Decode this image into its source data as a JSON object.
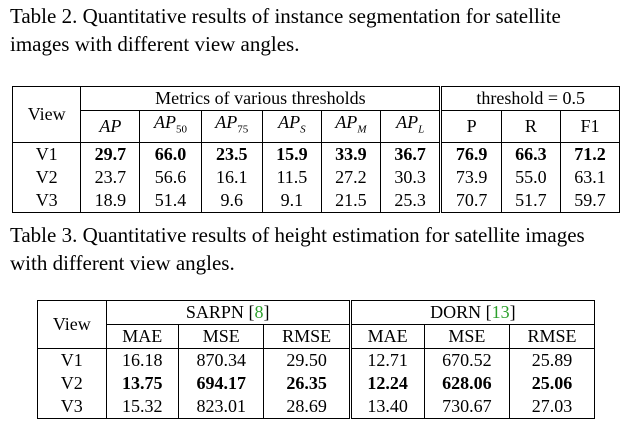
{
  "caption2": "Table 2. Quantitative results of instance segmentation for satellite images with different view angles.",
  "caption3": "Table 3. Quantitative results of height estimation for satellite images with different view angles.",
  "table2": {
    "view_header": "View",
    "group1": "Metrics of various thresholds",
    "group2": "threshold = 0.5",
    "metrics": [
      {
        "base": "AP",
        "sub": ""
      },
      {
        "base": "AP",
        "sub": "50"
      },
      {
        "base": "AP",
        "sub": "75"
      },
      {
        "base": "AP",
        "sub": "S"
      },
      {
        "base": "AP",
        "sub": "M"
      },
      {
        "base": "AP",
        "sub": "L"
      }
    ],
    "thr_cols": [
      "P",
      "R",
      "F1"
    ],
    "rows": [
      {
        "view": "V1",
        "values": [
          "29.7",
          "66.0",
          "23.5",
          "15.9",
          "33.9",
          "36.7",
          "76.9",
          "66.3",
          "71.2"
        ],
        "bold": true
      },
      {
        "view": "V2",
        "values": [
          "23.7",
          "56.6",
          "16.1",
          "11.5",
          "27.2",
          "30.3",
          "73.9",
          "55.0",
          "63.1"
        ],
        "bold": false
      },
      {
        "view": "V3",
        "values": [
          "18.9",
          "51.4",
          "9.6",
          "9.1",
          "21.5",
          "25.3",
          "70.7",
          "51.7",
          "59.7"
        ],
        "bold": false
      }
    ]
  },
  "table3": {
    "view_header": "View",
    "group1": {
      "name": "SARPN",
      "ref": "8"
    },
    "group2": {
      "name": "DORN",
      "ref": "13"
    },
    "cols": [
      "MAE",
      "MSE",
      "RMSE",
      "MAE",
      "MSE",
      "RMSE"
    ],
    "rows": [
      {
        "view": "V1",
        "values": [
          "16.18",
          "870.34",
          "29.50",
          "12.71",
          "670.52",
          "25.89"
        ],
        "bold": false
      },
      {
        "view": "V2",
        "values": [
          "13.75",
          "694.17",
          "26.35",
          "12.24",
          "628.06",
          "25.06"
        ],
        "bold": true
      },
      {
        "view": "V3",
        "values": [
          "15.32",
          "823.01",
          "28.69",
          "13.40",
          "730.67",
          "27.03"
        ],
        "bold": false
      }
    ]
  }
}
